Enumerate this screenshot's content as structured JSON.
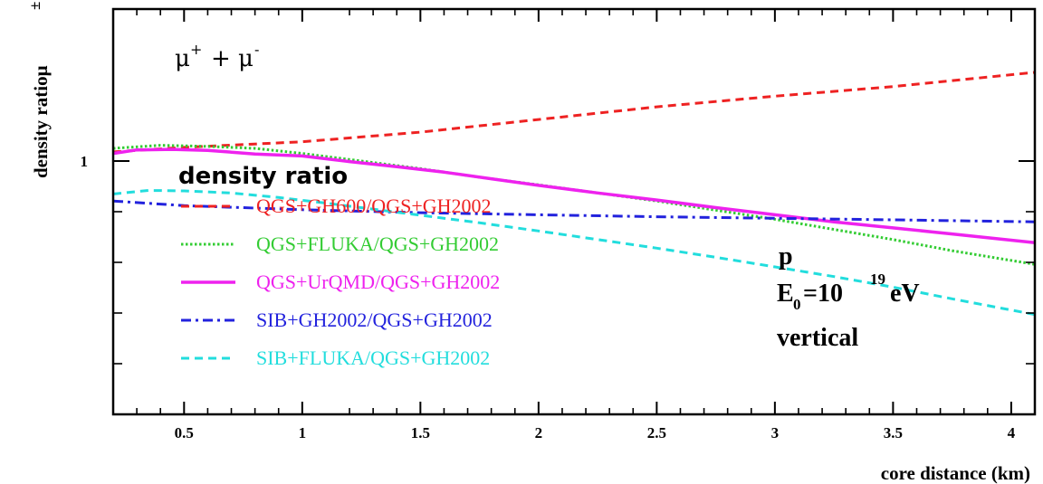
{
  "chart_data": {
    "type": "line",
    "title": "",
    "xlabel": "core distance (km)",
    "ylabel": "density ratio",
    "ylabel_symbol": "μ",
    "ylabel_symbol_sup": "±",
    "xlim": [
      0.2,
      4.1
    ],
    "ylim": [
      0.5,
      1.3
    ],
    "x_ticks": [
      0.5,
      1,
      1.5,
      2,
      2.5,
      3,
      3.5,
      4
    ],
    "x_tick_labels": [
      "0.5",
      "1",
      "1.5",
      "2",
      "2.5",
      "3",
      "3.5",
      "4"
    ],
    "y_major_ticks": [
      1
    ],
    "y_tick_labels": [
      "1"
    ],
    "y_minor_ticks": [
      0.6,
      0.7,
      0.8,
      0.9
    ],
    "grid": false,
    "legend_placement": "left-center",
    "legend_title": "density ratio",
    "annotation_particles": {
      "base": "μ",
      "plus": "+",
      "join": "+",
      "minus": "-"
    },
    "annotation_primary": "p",
    "annotation_energy": {
      "base": "E",
      "sub": "0",
      "eq": "=10",
      "exp": "19",
      "unit": "eV"
    },
    "annotation_direction": "vertical",
    "series": [
      {
        "name": "QGS+GH600/QGS+GH2002",
        "color": "#ee2222",
        "style": "dashed",
        "x": [
          0.2,
          0.5,
          1,
          1.5,
          2,
          2.5,
          3,
          3.5,
          4.1
        ],
        "y": [
          1.018,
          1.027,
          1.038,
          1.057,
          1.082,
          1.107,
          1.128,
          1.147,
          1.175
        ]
      },
      {
        "name": "QGS+FLUKA/QGS+GH2002",
        "color": "#33cc33",
        "style": "dotted",
        "x": [
          0.2,
          0.4,
          0.6,
          0.8,
          1,
          1.25,
          1.5,
          1.75,
          2,
          2.25,
          2.5,
          2.75,
          3,
          3.25,
          3.5,
          3.75,
          4.1
        ],
        "y": [
          1.025,
          1.031,
          1.029,
          1.025,
          1.015,
          1.0,
          0.985,
          0.968,
          0.953,
          0.937,
          0.921,
          0.903,
          0.885,
          0.865,
          0.845,
          0.823,
          0.796
        ]
      },
      {
        "name": "QGS+UrQMD/QGS+GH2002",
        "color": "#ee22ee",
        "style": "solid",
        "x": [
          0.2,
          0.3,
          0.45,
          0.6,
          0.8,
          1,
          1.2,
          1.4,
          1.6,
          1.8,
          2,
          2.25,
          2.5,
          2.75,
          3,
          3.25,
          3.5,
          3.75,
          4.1
        ],
        "y": [
          1.015,
          1.022,
          1.023,
          1.021,
          1.014,
          1.01,
          0.999,
          0.989,
          0.978,
          0.965,
          0.952,
          0.937,
          0.923,
          0.908,
          0.894,
          0.88,
          0.868,
          0.856,
          0.839
        ]
      },
      {
        "name": "SIB+GH2002/QGS+GH2002",
        "color": "#2222dd",
        "style": "dash-dot",
        "x": [
          0.2,
          0.5,
          1,
          1.5,
          2,
          2.5,
          3,
          3.5,
          4.1
        ],
        "y": [
          0.921,
          0.912,
          0.904,
          0.898,
          0.894,
          0.89,
          0.887,
          0.884,
          0.88
        ]
      },
      {
        "name": "SIB+FLUKA/QGS+GH2002",
        "color": "#22dddd",
        "style": "dashed",
        "x": [
          0.2,
          0.35,
          0.5,
          0.7,
          0.9,
          1.1,
          1.3,
          1.5,
          1.75,
          2,
          2.25,
          2.5,
          2.75,
          3,
          3.25,
          3.5,
          3.75,
          4.1
        ],
        "y": [
          0.935,
          0.942,
          0.941,
          0.937,
          0.928,
          0.917,
          0.905,
          0.893,
          0.878,
          0.862,
          0.845,
          0.828,
          0.81,
          0.791,
          0.772,
          0.751,
          0.728,
          0.697
        ]
      }
    ]
  }
}
